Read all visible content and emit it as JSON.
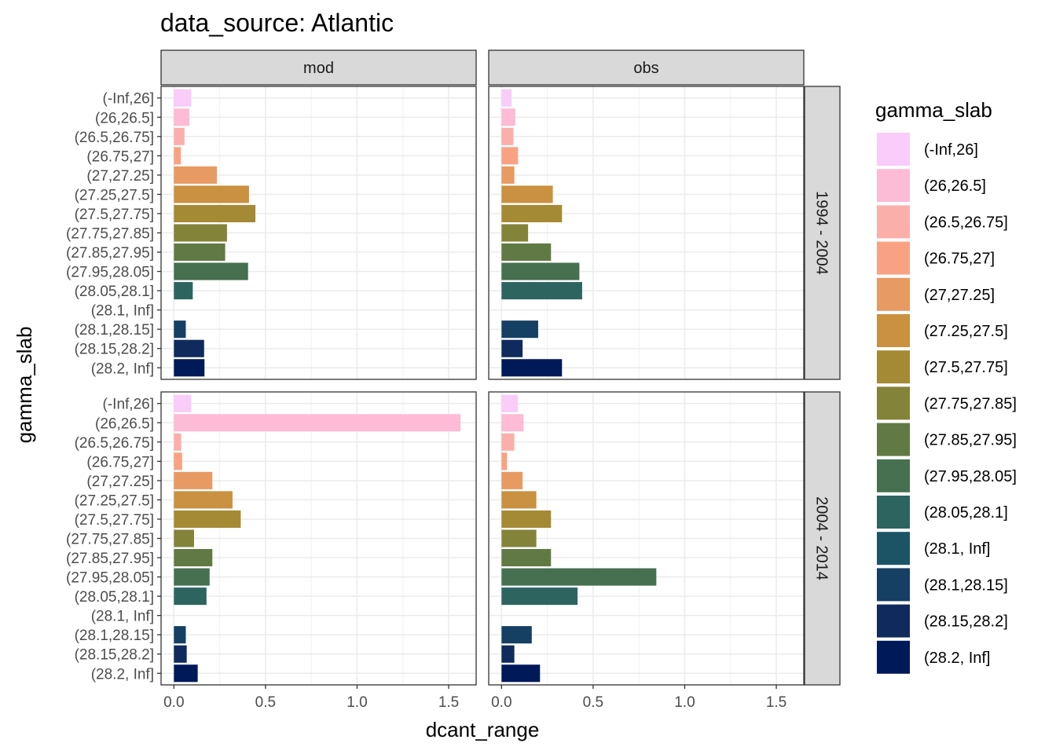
{
  "chart_data": {
    "type": "bar",
    "orientation": "horizontal",
    "title": "data_source: Atlantic",
    "xlabel": "dcant_range",
    "ylabel": "gamma_slab",
    "xlim": [
      -0.07,
      1.65
    ],
    "xticks": [
      0.0,
      0.5,
      1.0,
      1.5
    ],
    "xtick_labels": [
      "0.0",
      "0.5",
      "1.0",
      "1.5"
    ],
    "grid": true,
    "legend_position": "right",
    "legend_title": "gamma_slab",
    "facet_columns": [
      "mod",
      "obs"
    ],
    "facet_rows": [
      "1994 - 2004",
      "2004 - 2014"
    ],
    "categories": [
      "(-Inf,26]",
      "(26,26.5]",
      "(26.5,26.75]",
      "(26.75,27]",
      "(27,27.25]",
      "(27.25,27.5]",
      "(27.5,27.75]",
      "(27.75,27.85]",
      "(27.85,27.95]",
      "(27.95,28.05]",
      "(28.05,28.1]",
      "(28.1, Inf]",
      "(28.1,28.15]",
      "(28.15,28.2]",
      "(28.2, Inf]"
    ],
    "colors": [
      "#f9ccf9",
      "#fdbbd5",
      "#fbafab",
      "#f9a283",
      "#e89a63",
      "#c99140",
      "#a48a35",
      "#83833a",
      "#617a43",
      "#467050",
      "#2d6460",
      "#1c5466",
      "#153f63",
      "#102a5e",
      "#001959"
    ],
    "panels": [
      {
        "column": "mod",
        "row": "1994 - 2004",
        "values": [
          0.095,
          0.085,
          0.058,
          0.038,
          0.235,
          0.41,
          0.445,
          0.29,
          0.28,
          0.405,
          0.103,
          null,
          0.065,
          0.165,
          0.167
        ]
      },
      {
        "column": "obs",
        "row": "1994 - 2004",
        "values": [
          0.055,
          0.075,
          0.065,
          0.09,
          0.07,
          0.28,
          0.33,
          0.145,
          0.27,
          0.425,
          0.44,
          null,
          0.2,
          0.115,
          0.33
        ]
      },
      {
        "column": "mod",
        "row": "2004 - 2014",
        "values": [
          0.095,
          1.565,
          0.04,
          0.045,
          0.21,
          0.32,
          0.365,
          0.11,
          0.21,
          0.195,
          0.178,
          null,
          0.065,
          0.07,
          0.13
        ]
      },
      {
        "column": "obs",
        "row": "2004 - 2014",
        "values": [
          0.09,
          0.12,
          0.07,
          0.03,
          0.115,
          0.19,
          0.27,
          0.19,
          0.27,
          0.845,
          0.415,
          null,
          0.165,
          0.07,
          0.21
        ]
      }
    ]
  }
}
